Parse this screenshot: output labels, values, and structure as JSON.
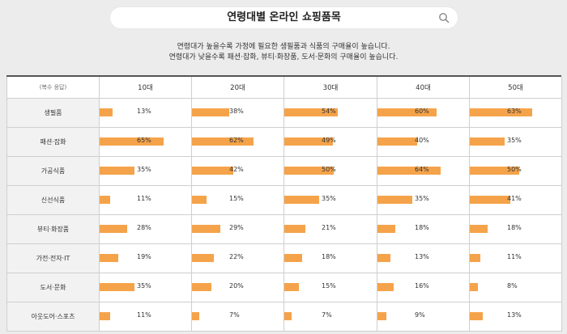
{
  "search": {
    "title": "연령대별 온라인 쇼핑품목"
  },
  "description": {
    "line1": "연령대가 높을수록 가정에 필요한 생필품과 식품의 구매율이 높습니다.",
    "line2": "연령대가 낮을수록 패션·잡화, 뷰티·화장품, 도서·문화의 구매율이 높습니다."
  },
  "table": {
    "corner": "(복수 응답)",
    "columns": [
      "10대",
      "20대",
      "30대",
      "40대",
      "50대"
    ],
    "rows": [
      {
        "label": "생필품",
        "values": [
          13,
          38,
          54,
          60,
          63
        ]
      },
      {
        "label": "패션·잡화",
        "values": [
          65,
          62,
          49,
          40,
          35
        ]
      },
      {
        "label": "가공식품",
        "values": [
          35,
          42,
          50,
          64,
          50
        ]
      },
      {
        "label": "신선식품",
        "values": [
          11,
          15,
          35,
          35,
          41
        ]
      },
      {
        "label": "뷰티·화장품",
        "values": [
          28,
          29,
          21,
          18,
          18
        ]
      },
      {
        "label": "가전·전자·IT",
        "values": [
          19,
          22,
          18,
          13,
          11
        ]
      },
      {
        "label": "도서·문화",
        "values": [
          35,
          20,
          15,
          16,
          8
        ]
      },
      {
        "label": "아웃도어·스포츠",
        "values": [
          11,
          7,
          7,
          9,
          13
        ]
      }
    ],
    "bar_color": "#f5a34a"
  }
}
